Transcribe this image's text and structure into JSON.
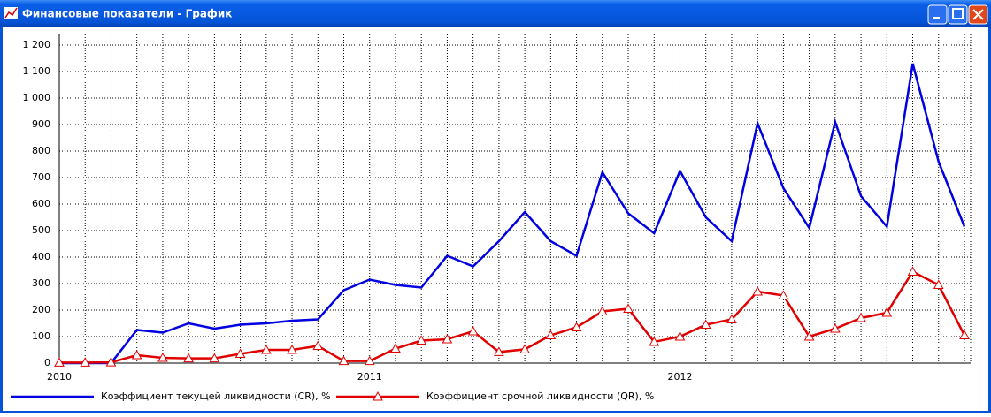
{
  "window": {
    "title": "Финансовые показатели - График"
  },
  "chart_data": {
    "type": "line",
    "categories": [
      "2010",
      null,
      null,
      null,
      null,
      null,
      null,
      null,
      null,
      null,
      null,
      null,
      "2011",
      null,
      null,
      null,
      null,
      null,
      null,
      null,
      null,
      null,
      null,
      null,
      "2012",
      null,
      null,
      null,
      null,
      null,
      null,
      null,
      null,
      null,
      null,
      null
    ],
    "series": [
      {
        "name": "Коэффициент текущей ликвидности (CR), %",
        "color": "#0000e0",
        "values": [
          0,
          0,
          0,
          125,
          115,
          150,
          130,
          145,
          150,
          160,
          165,
          275,
          315,
          295,
          285,
          405,
          365,
          460,
          570,
          460,
          405,
          720,
          565,
          490,
          725,
          550,
          460,
          905,
          660,
          510,
          910,
          630,
          515,
          1130,
          760,
          515
        ]
      },
      {
        "name": "Коэффициент срочной ликвидности (QR), %",
        "color": "#e00000",
        "marker": "triangle",
        "values": [
          2,
          2,
          3,
          30,
          20,
          18,
          18,
          35,
          50,
          50,
          65,
          8,
          8,
          55,
          85,
          90,
          120,
          42,
          52,
          105,
          135,
          195,
          205,
          80,
          100,
          145,
          165,
          270,
          255,
          100,
          130,
          170,
          190,
          345,
          295,
          105
        ]
      }
    ],
    "ylim": [
      0,
      1240
    ],
    "yticks": [
      0,
      100,
      200,
      300,
      400,
      500,
      600,
      700,
      800,
      900,
      {
        "value": 1000,
        "label": "1 000"
      },
      {
        "value": 1100,
        "label": "1 100"
      },
      {
        "value": 1200,
        "label": "1 200"
      }
    ],
    "grid": true,
    "legend": "bottom-left"
  }
}
